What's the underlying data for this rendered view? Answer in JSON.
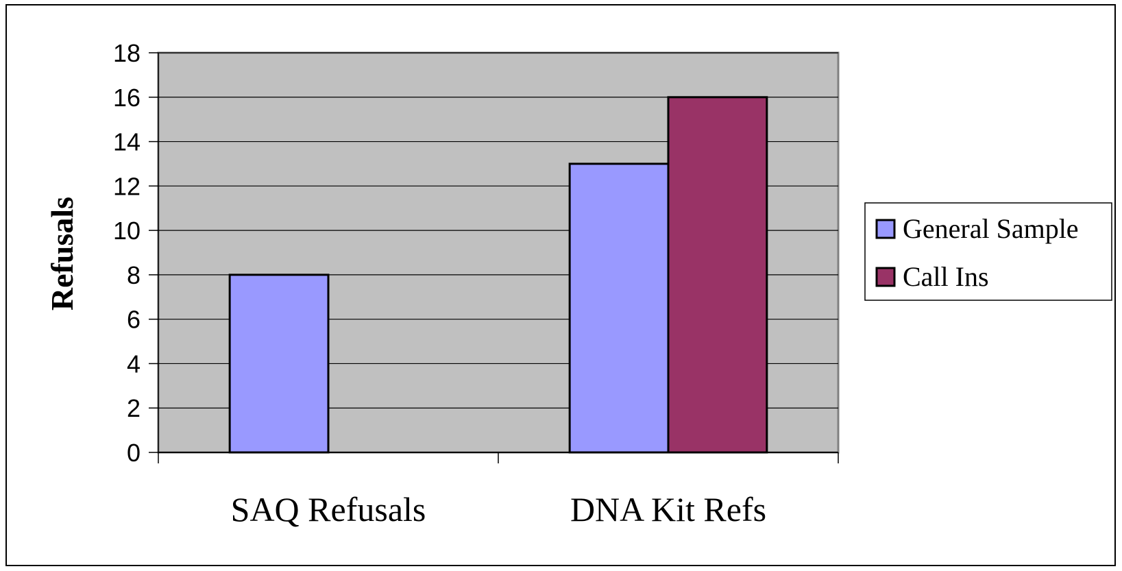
{
  "chart_data": {
    "type": "bar",
    "title": "",
    "xlabel": "",
    "ylabel": "Refusals",
    "categories": [
      "SAQ Refusals",
      "DNA Kit Refs"
    ],
    "series": [
      {
        "name": "General Sample",
        "values": [
          8,
          13
        ],
        "color": "#9999ff"
      },
      {
        "name": "Call Ins",
        "values": [
          0,
          16
        ],
        "color": "#993366"
      }
    ],
    "ylim": [
      0,
      18
    ],
    "yticks": [
      0,
      2,
      4,
      6,
      8,
      10,
      12,
      14,
      16,
      18
    ],
    "grid": true,
    "plot_background": "#c0c0c0",
    "legend_position": "right"
  }
}
